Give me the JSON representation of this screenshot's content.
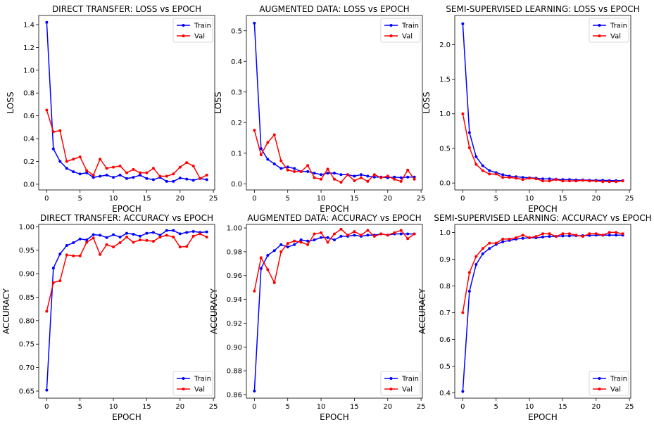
{
  "colors": {
    "train": "#0000ff",
    "val": "#ff0000"
  },
  "chart_data": [
    {
      "type": "line",
      "title": "DIRECT TRANSFER: LOSS vs EPOCH",
      "xlabel": "EPOCH",
      "ylabel": "LOSS",
      "xlim": [
        -1.2,
        25.2
      ],
      "ylim": [
        -0.05,
        1.48
      ],
      "xticks": [
        0,
        5,
        10,
        15,
        20,
        25
      ],
      "yticks": [
        0.0,
        0.2,
        0.4,
        0.6,
        0.8,
        1.0,
        1.2,
        1.4
      ],
      "ytick_labels": [
        "0.0",
        "0.2",
        "0.4",
        "0.6",
        "0.8",
        "1.0",
        "1.2",
        "1.4"
      ],
      "legend": "upper right",
      "x": [
        0,
        1,
        2,
        3,
        4,
        5,
        6,
        7,
        8,
        9,
        10,
        11,
        12,
        13,
        14,
        15,
        16,
        17,
        18,
        19,
        20,
        21,
        22,
        23,
        24
      ],
      "series": [
        {
          "name": "Train",
          "values": [
            1.42,
            0.31,
            0.2,
            0.14,
            0.11,
            0.09,
            0.1,
            0.06,
            0.07,
            0.08,
            0.06,
            0.08,
            0.05,
            0.06,
            0.08,
            0.05,
            0.04,
            0.06,
            0.025,
            0.025,
            0.055,
            0.045,
            0.035,
            0.05,
            0.04
          ]
        },
        {
          "name": "Val",
          "values": [
            0.65,
            0.46,
            0.47,
            0.2,
            0.22,
            0.24,
            0.12,
            0.08,
            0.22,
            0.14,
            0.15,
            0.16,
            0.1,
            0.13,
            0.1,
            0.1,
            0.14,
            0.07,
            0.07,
            0.09,
            0.15,
            0.19,
            0.16,
            0.05,
            0.08
          ]
        }
      ]
    },
    {
      "type": "line",
      "title": "AUGMENTED DATA: LOSS vs EPOCH",
      "xlabel": "EPOCH",
      "ylabel": "LOSS",
      "xlim": [
        -1.2,
        25.2
      ],
      "ylim": [
        -0.02,
        0.55
      ],
      "xticks": [
        0,
        5,
        10,
        15,
        20,
        25
      ],
      "yticks": [
        0.0,
        0.1,
        0.2,
        0.3,
        0.4,
        0.5
      ],
      "ytick_labels": [
        "0.0",
        "0.1",
        "0.2",
        "0.3",
        "0.4",
        "0.5"
      ],
      "legend": "upper right",
      "x": [
        0,
        1,
        2,
        3,
        4,
        5,
        6,
        7,
        8,
        9,
        10,
        11,
        12,
        13,
        14,
        15,
        16,
        17,
        18,
        19,
        20,
        21,
        22,
        23,
        24
      ],
      "series": [
        {
          "name": "Train",
          "values": [
            0.525,
            0.115,
            0.08,
            0.065,
            0.05,
            0.055,
            0.05,
            0.04,
            0.04,
            0.035,
            0.03,
            0.035,
            0.035,
            0.03,
            0.03,
            0.025,
            0.03,
            0.025,
            0.022,
            0.022,
            0.02,
            0.022,
            0.02,
            0.022,
            0.022
          ]
        },
        {
          "name": "Val",
          "values": [
            0.175,
            0.095,
            0.135,
            0.16,
            0.075,
            0.045,
            0.04,
            0.04,
            0.06,
            0.02,
            0.015,
            0.048,
            0.015,
            0.005,
            0.03,
            0.01,
            0.02,
            0.008,
            0.03,
            0.02,
            0.025,
            0.015,
            0.008,
            0.045,
            0.015
          ]
        }
      ]
    },
    {
      "type": "line",
      "title": "SEMI-SUPERVISED LEARNING: LOSS vs EPOCH",
      "xlabel": "EPOCH",
      "ylabel": "LOSS",
      "xlim": [
        -1.2,
        25.2
      ],
      "ylim": [
        -0.1,
        2.42
      ],
      "xticks": [
        0,
        5,
        10,
        15,
        20,
        25
      ],
      "yticks": [
        0.0,
        0.5,
        1.0,
        1.5,
        2.0
      ],
      "ytick_labels": [
        "0.0",
        "0.5",
        "1.0",
        "1.5",
        "2.0"
      ],
      "legend": "upper right",
      "x": [
        0,
        1,
        2,
        3,
        4,
        5,
        6,
        7,
        8,
        9,
        10,
        11,
        12,
        13,
        14,
        15,
        16,
        17,
        18,
        19,
        20,
        21,
        22,
        23,
        24
      ],
      "series": [
        {
          "name": "Train",
          "values": [
            2.3,
            0.73,
            0.38,
            0.25,
            0.18,
            0.15,
            0.12,
            0.1,
            0.09,
            0.08,
            0.075,
            0.07,
            0.06,
            0.06,
            0.055,
            0.05,
            0.05,
            0.045,
            0.045,
            0.04,
            0.04,
            0.04,
            0.035,
            0.035,
            0.035
          ]
        },
        {
          "name": "Val",
          "values": [
            1.0,
            0.51,
            0.27,
            0.18,
            0.13,
            0.13,
            0.08,
            0.08,
            0.07,
            0.05,
            0.07,
            0.06,
            0.03,
            0.03,
            0.05,
            0.03,
            0.03,
            0.03,
            0.04,
            0.03,
            0.03,
            0.02,
            0.02,
            0.02,
            0.03
          ]
        }
      ]
    },
    {
      "type": "line",
      "title": "DIRECT TRANSFER: ACCURACY vs EPOCH",
      "xlabel": "EPOCH",
      "ylabel": "ACCURACY",
      "xlim": [
        -1.2,
        25.2
      ],
      "ylim": [
        0.635,
        1.005
      ],
      "xticks": [
        0,
        5,
        10,
        15,
        20,
        25
      ],
      "yticks": [
        0.65,
        0.7,
        0.75,
        0.8,
        0.85,
        0.9,
        0.95,
        1.0
      ],
      "ytick_labels": [
        "0.65",
        "0.70",
        "0.75",
        "0.80",
        "0.85",
        "0.90",
        "0.95",
        "1.00"
      ],
      "legend": "lower right",
      "x": [
        0,
        1,
        2,
        3,
        4,
        5,
        6,
        7,
        8,
        9,
        10,
        11,
        12,
        13,
        14,
        15,
        16,
        17,
        18,
        19,
        20,
        21,
        22,
        23,
        24
      ],
      "series": [
        {
          "name": "Train",
          "values": [
            0.652,
            0.912,
            0.942,
            0.96,
            0.966,
            0.974,
            0.972,
            0.983,
            0.982,
            0.977,
            0.983,
            0.978,
            0.986,
            0.984,
            0.98,
            0.986,
            0.988,
            0.982,
            0.992,
            0.992,
            0.985,
            0.988,
            0.99,
            0.988,
            0.989
          ]
        },
        {
          "name": "Val",
          "values": [
            0.82,
            0.881,
            0.885,
            0.94,
            0.938,
            0.938,
            0.967,
            0.976,
            0.941,
            0.962,
            0.957,
            0.966,
            0.978,
            0.967,
            0.972,
            0.971,
            0.969,
            0.978,
            0.982,
            0.978,
            0.957,
            0.958,
            0.98,
            0.985,
            0.978
          ]
        }
      ]
    },
    {
      "type": "line",
      "title": "AUGMENTED DATA: ACCURACY vs EPOCH",
      "xlabel": "EPOCH",
      "ylabel": "ACCURACY",
      "xlim": [
        -1.2,
        25.2
      ],
      "ylim": [
        0.857,
        1.003
      ],
      "xticks": [
        0,
        5,
        10,
        15,
        20,
        25
      ],
      "yticks": [
        0.86,
        0.88,
        0.9,
        0.92,
        0.94,
        0.96,
        0.98,
        1.0
      ],
      "ytick_labels": [
        "0.86",
        "0.88",
        "0.90",
        "0.92",
        "0.94",
        "0.96",
        "0.98",
        "1.00"
      ],
      "legend": "lower right",
      "x": [
        0,
        1,
        2,
        3,
        4,
        5,
        6,
        7,
        8,
        9,
        10,
        11,
        12,
        13,
        14,
        15,
        16,
        17,
        18,
        19,
        20,
        21,
        22,
        23,
        24
      ],
      "series": [
        {
          "name": "Train",
          "values": [
            0.863,
            0.966,
            0.977,
            0.981,
            0.986,
            0.984,
            0.986,
            0.99,
            0.989,
            0.99,
            0.992,
            0.992,
            0.99,
            0.993,
            0.993,
            0.994,
            0.993,
            0.994,
            0.994,
            0.995,
            0.994,
            0.995,
            0.995,
            0.995,
            0.995
          ]
        },
        {
          "name": "Val",
          "values": [
            0.947,
            0.975,
            0.965,
            0.954,
            0.98,
            0.987,
            0.989,
            0.988,
            0.986,
            0.995,
            0.996,
            0.988,
            0.995,
            0.999,
            0.994,
            0.997,
            0.994,
            0.998,
            0.993,
            0.995,
            0.994,
            0.996,
            0.998,
            0.991,
            0.995
          ]
        }
      ]
    },
    {
      "type": "line",
      "title": "SEMI-SUPERVISED LEARNING: ACCURACY vs EPOCH",
      "xlabel": "EPOCH",
      "ylabel": "ACCURACY",
      "xlim": [
        -1.2,
        25.2
      ],
      "ylim": [
        0.38,
        1.03
      ],
      "xticks": [
        0,
        5,
        10,
        15,
        20,
        25
      ],
      "yticks": [
        0.4,
        0.5,
        0.6,
        0.7,
        0.8,
        0.9,
        1.0
      ],
      "ytick_labels": [
        "0.4",
        "0.5",
        "0.6",
        "0.7",
        "0.8",
        "0.9",
        "1.0"
      ],
      "legend": "lower right",
      "x": [
        0,
        1,
        2,
        3,
        4,
        5,
        6,
        7,
        8,
        9,
        10,
        11,
        12,
        13,
        14,
        15,
        16,
        17,
        18,
        19,
        20,
        21,
        22,
        23,
        24
      ],
      "series": [
        {
          "name": "Train",
          "values": [
            0.405,
            0.78,
            0.88,
            0.92,
            0.94,
            0.955,
            0.965,
            0.97,
            0.975,
            0.978,
            0.98,
            0.98,
            0.983,
            0.985,
            0.985,
            0.987,
            0.987,
            0.988,
            0.988,
            0.989,
            0.99,
            0.99,
            0.99,
            0.99,
            0.99
          ]
        },
        {
          "name": "Val",
          "values": [
            0.7,
            0.85,
            0.91,
            0.94,
            0.96,
            0.96,
            0.975,
            0.975,
            0.98,
            0.99,
            0.98,
            0.985,
            0.995,
            0.995,
            0.985,
            0.995,
            0.995,
            0.99,
            0.985,
            0.995,
            0.995,
            0.99,
            1.0,
            1.0,
            0.995
          ]
        }
      ]
    }
  ]
}
